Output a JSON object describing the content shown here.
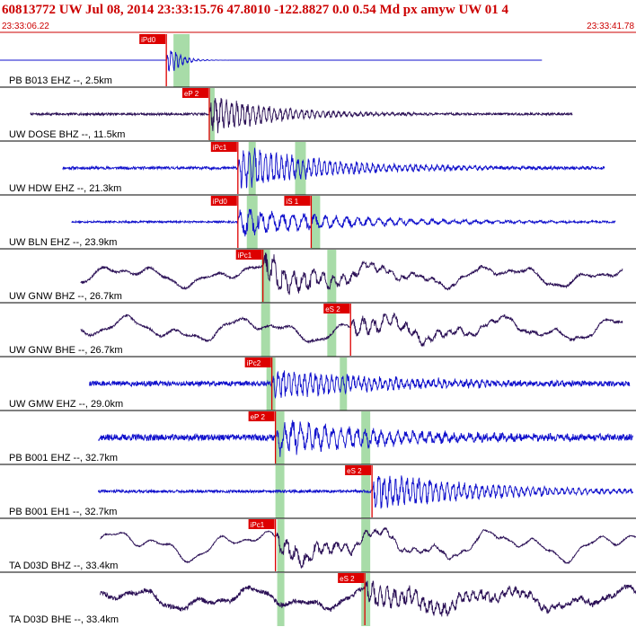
{
  "header": {
    "title": "60813772 UW Jul 08, 2014 23:33:15.76   47.8010 -122.8827  0.0 0.54 Md px amyw UW 01    4",
    "start_time": "23:33:06.22",
    "end_time": "23:33:41.78"
  },
  "colors": {
    "header_text": "#cc0000",
    "header_rule": "#cc0000",
    "trace_blue": "#1010cc",
    "trace_purple": "#2a0f55",
    "pick_marker": "#dd0000",
    "pick_window": "#a8dca8",
    "theory_curve": "#000000",
    "row_divider": "#000000"
  },
  "chart_data": {
    "type": "line",
    "title": "60813772 UW Jul 08, 2014 23:33:15.76   47.8010 -122.8827  0.0 0.54 Md px amyw UW 01    4",
    "x_axis": {
      "start": "23:33:06.22",
      "end": "23:33:41.78"
    },
    "traces": [
      {
        "label": "PB B013 EHZ --, 2.5km",
        "color_key": "trace_blue",
        "seed": 3,
        "onset": 9.3,
        "extent": [
          0.0,
          30.3
        ],
        "noise": 0.0,
        "signal": 1.0,
        "decay": 0.6,
        "period": 0.25,
        "wander": 0.0,
        "picks": [
          {
            "label": "iPd0",
            "t": 9.3,
            "up": true
          }
        ],
        "windows": [
          [
            9.7,
            10.6
          ]
        ]
      },
      {
        "label": "UW DOSE BHZ --, 11.5km",
        "color_key": "trace_purple",
        "seed": 7,
        "onset": 11.7,
        "extent": [
          1.7,
          32.0
        ],
        "noise": 0.1,
        "signal": 0.95,
        "decay": 3.5,
        "period": 0.3,
        "wander": 0.0,
        "picks": [
          {
            "label": "eP 2",
            "t": 11.7,
            "up": true
          }
        ],
        "windows": [
          [
            11.7,
            12.0
          ]
        ]
      },
      {
        "label": "UW HDW EHZ --, 21.3km",
        "color_key": "trace_blue",
        "seed": 11,
        "onset": 13.3,
        "extent": [
          3.5,
          33.8
        ],
        "noise": 0.12,
        "signal": 1.0,
        "decay": 5.0,
        "period": 0.3,
        "wander": 0.0,
        "picks": [
          {
            "label": "iPc1",
            "t": 13.3,
            "up": true
          }
        ],
        "windows": [
          [
            13.9,
            14.3
          ],
          [
            16.5,
            17.1
          ]
        ]
      },
      {
        "label": "UW BLN EHZ --, 23.9km",
        "color_key": "trace_blue",
        "seed": 17,
        "onset": 13.3,
        "extent": [
          4.0,
          34.4
        ],
        "noise": 0.08,
        "signal": 0.7,
        "decay": 6.0,
        "period": 0.6,
        "wander": 0.0,
        "picks": [
          {
            "label": "iPd0",
            "t": 13.3,
            "up": true
          },
          {
            "label": "iS 1",
            "t": 17.4,
            "up": true
          }
        ],
        "windows": [
          [
            13.8,
            14.4
          ],
          [
            17.4,
            17.9
          ]
        ]
      },
      {
        "label": "UW GNW BHZ --, 26.7km",
        "color_key": "trace_purple",
        "seed": 23,
        "onset": 14.7,
        "extent": [
          4.5,
          34.8
        ],
        "noise": 0.1,
        "signal": 0.8,
        "decay": 4.0,
        "period": 0.55,
        "wander": 0.55,
        "picks": [
          {
            "label": "iPc1",
            "t": 14.7,
            "up": false
          }
        ],
        "windows": [
          [
            14.6,
            15.1
          ],
          [
            18.3,
            18.8
          ]
        ]
      },
      {
        "label": "UW GNW BHE --, 26.7km",
        "color_key": "trace_purple",
        "seed": 29,
        "onset": 19.6,
        "extent": [
          4.5,
          34.8
        ],
        "noise": 0.1,
        "signal": 0.5,
        "decay": 4.5,
        "period": 0.6,
        "wander": 0.6,
        "picks": [
          {
            "label": "eS 2",
            "t": 19.6,
            "up": false
          }
        ],
        "windows": [
          [
            14.6,
            15.1
          ],
          [
            18.3,
            18.8
          ]
        ]
      },
      {
        "label": "UW GMW EHZ --, 29.0km",
        "color_key": "trace_blue",
        "seed": 31,
        "onset": 15.2,
        "extent": [
          5.0,
          35.2
        ],
        "noise": 0.22,
        "signal": 0.75,
        "decay": 6.0,
        "period": 0.3,
        "wander": 0.0,
        "picks": [
          {
            "label": "iPc2",
            "t": 15.2,
            "up": true
          }
        ],
        "windows": [
          [
            14.9,
            15.4
          ],
          [
            19.0,
            19.4
          ]
        ]
      },
      {
        "label": "PB B001 EHZ --, 32.7km",
        "color_key": "trace_blue",
        "seed": 37,
        "onset": 15.4,
        "extent": [
          5.5,
          35.4
        ],
        "noise": 0.28,
        "signal": 0.85,
        "decay": 6.0,
        "period": 0.45,
        "wander": 0.0,
        "picks": [
          {
            "label": "eP 2",
            "t": 15.4,
            "up": true
          }
        ],
        "windows": [
          [
            15.4,
            15.9
          ],
          [
            20.2,
            20.7
          ]
        ]
      },
      {
        "label": "PB B001 EH1 --, 32.7km",
        "color_key": "trace_blue",
        "seed": 41,
        "onset": 20.8,
        "extent": [
          5.5,
          35.4
        ],
        "noise": 0.12,
        "signal": 0.9,
        "decay": 6.0,
        "period": 0.32,
        "wander": 0.0,
        "picks": [
          {
            "label": "eS 2",
            "t": 20.8,
            "up": true
          }
        ],
        "windows": [
          [
            15.4,
            15.9
          ],
          [
            20.2,
            20.7
          ]
        ]
      },
      {
        "label": "TA D03D BHZ --, 33.4km",
        "color_key": "trace_purple",
        "seed": 43,
        "onset": 15.4,
        "extent": [
          5.6,
          35.8
        ],
        "noise": 0.06,
        "signal": 0.5,
        "decay": 5.0,
        "period": 0.55,
        "wander": 0.75,
        "picks": [
          {
            "label": "iPc1",
            "t": 15.4,
            "up": false
          }
        ],
        "windows": [
          [
            15.5,
            15.9
          ],
          [
            20.2,
            20.7
          ]
        ]
      },
      {
        "label": "TA D03D BHE --, 33.4km",
        "color_key": "trace_purple",
        "seed": 47,
        "onset": 20.4,
        "extent": [
          5.6,
          35.8
        ],
        "noise": 0.2,
        "signal": 0.6,
        "decay": 6.0,
        "period": 0.4,
        "wander": 0.55,
        "picks": [
          {
            "label": "eS 2",
            "t": 20.4,
            "up": false
          }
        ],
        "windows": [
          [
            15.5,
            15.9
          ],
          [
            20.2,
            20.7
          ]
        ]
      }
    ]
  }
}
